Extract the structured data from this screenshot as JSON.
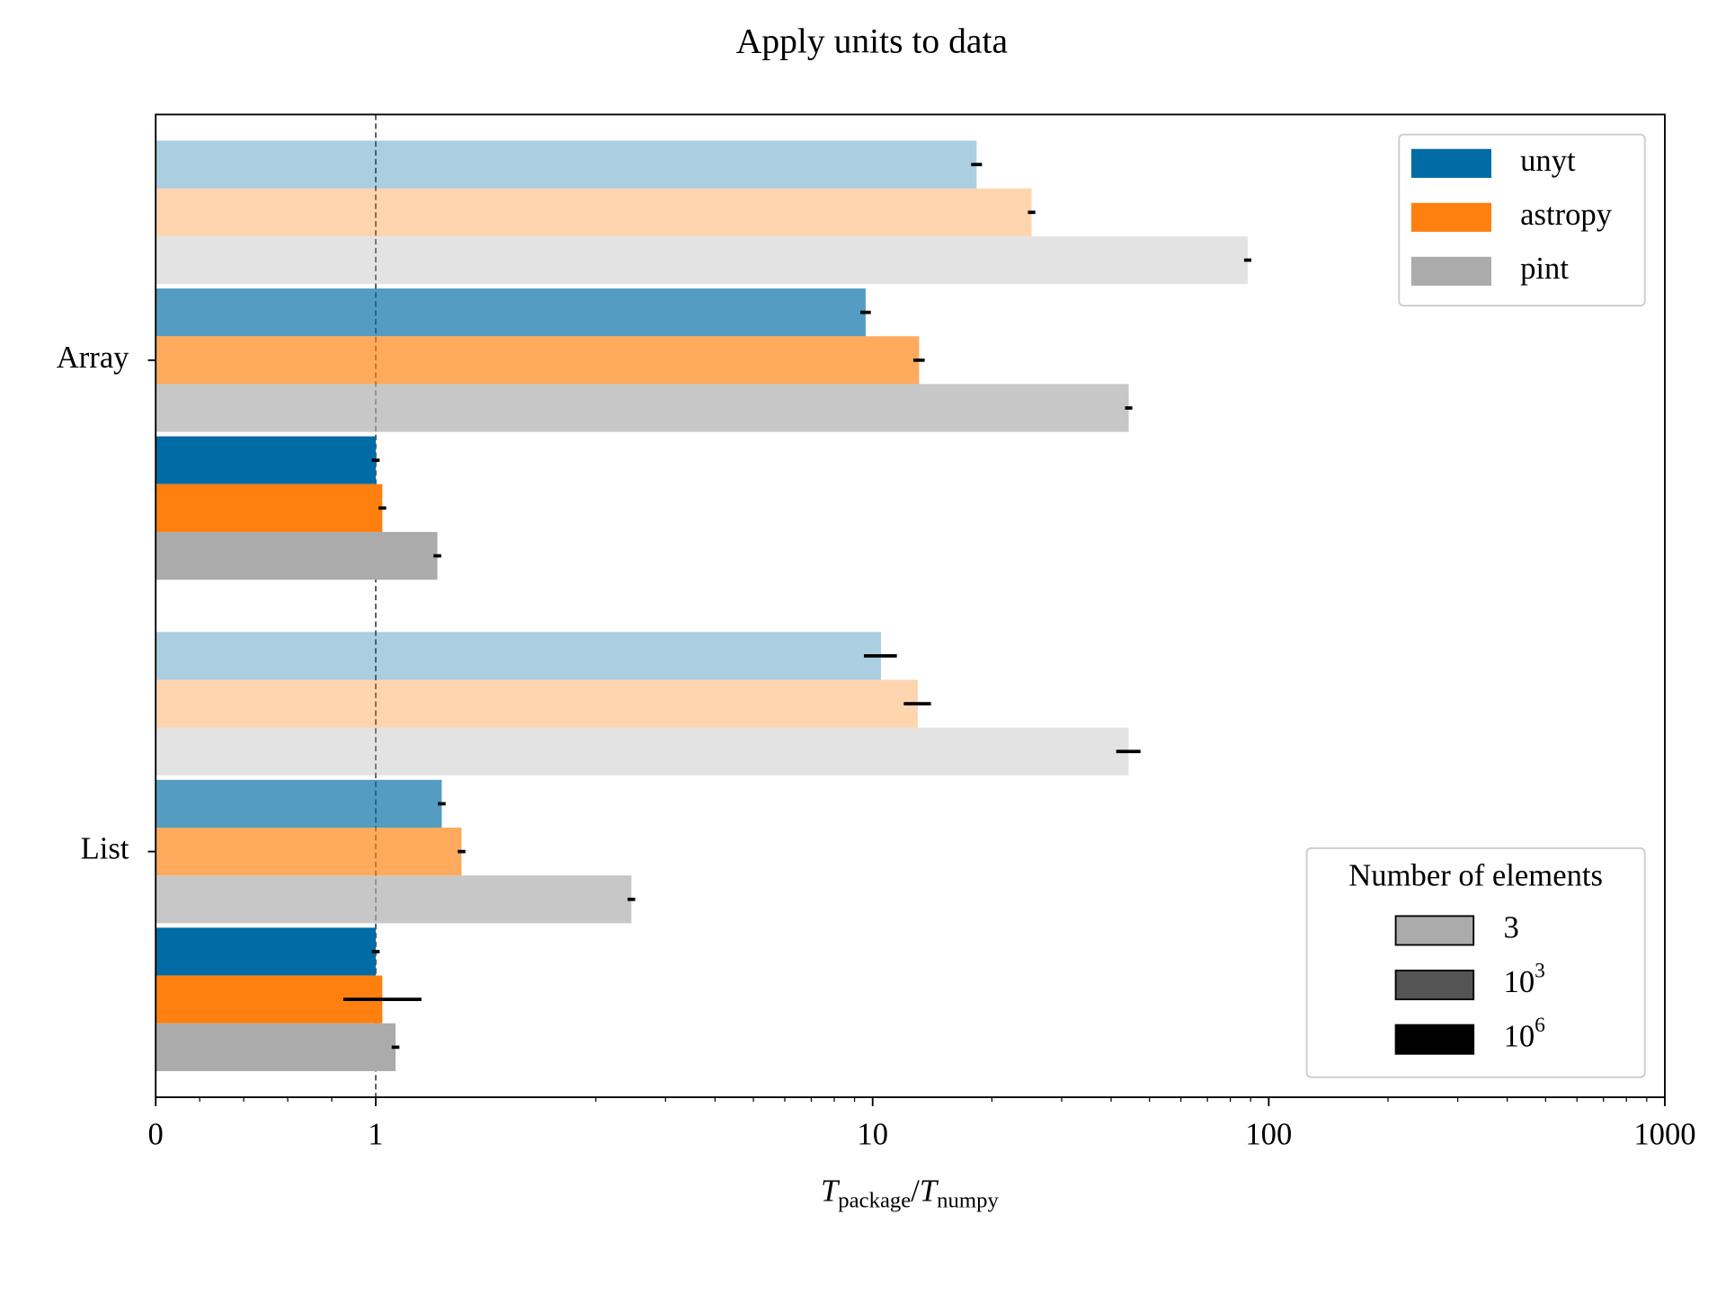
{
  "chart_data": {
    "type": "barh",
    "title": "Apply units to data",
    "xlabel": [
      {
        "text": "T",
        "sub": "package"
      },
      {
        "text": "/"
      },
      {
        "text": "T",
        "sub": "numpy"
      }
    ],
    "categories": [
      "Array",
      "List"
    ],
    "xscale": "symlog",
    "linthresh": 2,
    "linscale": 1,
    "base": 10,
    "xlim": [
      0,
      1000
    ],
    "xticks": [
      0,
      1,
      10,
      100,
      1000
    ],
    "xminorticks": [
      0.2,
      0.4,
      0.6,
      0.8,
      2,
      3,
      4,
      5,
      6,
      7,
      8,
      9,
      20,
      30,
      40,
      50,
      60,
      70,
      80,
      90,
      200,
      300,
      400,
      500,
      600,
      700,
      800,
      900
    ],
    "reference_line": 1,
    "series": [
      {
        "name": "unyt",
        "color": "#006ba4",
        "values": [
          [
            18.3,
            9.6,
            1.0
          ],
          [
            10.5,
            1.3,
            1.0
          ]
        ],
        "errors": [
          [
            0.4,
            0.2,
            0.01
          ],
          [
            0.9,
            0.01,
            0.01
          ]
        ]
      },
      {
        "name": "astropy",
        "color": "#ff800e",
        "values": [
          [
            25.2,
            13.1,
            1.03
          ],
          [
            13.0,
            1.39,
            1.03
          ]
        ],
        "errors": [
          [
            0.3,
            0.3,
            0.01
          ],
          [
            0.9,
            0.01,
            0.17
          ]
        ]
      },
      {
        "name": "pint",
        "color": "#ababab",
        "values": [
          [
            88.5,
            44.3,
            1.28
          ],
          [
            44.3,
            2.46,
            1.09
          ]
        ],
        "errors": [
          [
            1.0,
            0.5,
            0.01
          ],
          [
            2.7,
            0.03,
            0.01
          ]
        ]
      }
    ],
    "legend": {
      "loc": "upper right"
    },
    "size_legend": {
      "loc": "lower right",
      "title": "Number of elements",
      "color": "#000000",
      "entries": [
        {
          "label": "3",
          "alpha": 0.33
        },
        {
          "label": "10",
          "sup": "3",
          "alpha": 0.67
        },
        {
          "label": "10",
          "sup": "6",
          "alpha": 1
        }
      ]
    }
  }
}
